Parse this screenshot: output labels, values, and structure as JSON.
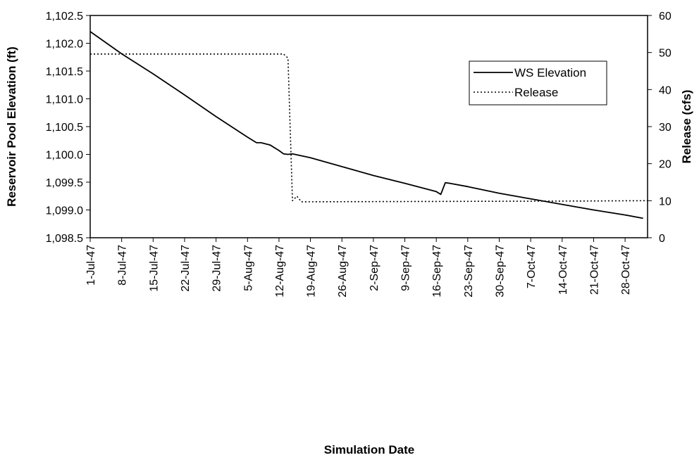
{
  "chart_data": {
    "type": "line",
    "xlabel": "Simulation Date",
    "ylabel_left": "Reservoir Pool Elevation (ft)",
    "ylabel_right": "Release (cfs)",
    "ylim_left": [
      1098.5,
      1102.5
    ],
    "ylim_right": [
      0,
      60
    ],
    "xlim": [
      "1-Jul-47",
      "2-Nov-47"
    ],
    "left_ticks": [
      "1,098.5",
      "1,099.0",
      "1,099.5",
      "1,100.0",
      "1,100.5",
      "1,101.0",
      "1,101.5",
      "1,102.0",
      "1,102.5"
    ],
    "right_ticks": [
      "0",
      "10",
      "20",
      "30",
      "40",
      "50",
      "60"
    ],
    "x_ticks": [
      "1-Jul-47",
      "8-Jul-47",
      "15-Jul-47",
      "22-Jul-47",
      "29-Jul-47",
      "5-Aug-47",
      "12-Aug-47",
      "19-Aug-47",
      "26-Aug-47",
      "2-Sep-47",
      "9-Sep-47",
      "16-Sep-47",
      "23-Sep-47",
      "30-Sep-47",
      "7-Oct-47",
      "14-Oct-47",
      "21-Oct-47",
      "28-Oct-47"
    ],
    "grid": false,
    "legend_position": "top-right",
    "series": [
      {
        "name": "WS Elevation",
        "axis": "left",
        "style": "solid",
        "color": "#000000",
        "points": [
          [
            "1-Jul-47",
            1102.21
          ],
          [
            "8-Jul-47",
            1101.81
          ],
          [
            "15-Jul-47",
            1101.45
          ],
          [
            "22-Jul-47",
            1101.07
          ],
          [
            "29-Jul-47",
            1100.68
          ],
          [
            "5-Aug-47",
            1100.31
          ],
          [
            "7-Aug-47",
            1100.21
          ],
          [
            "8-Aug-47",
            1100.21
          ],
          [
            "9-Aug-47",
            1100.19
          ],
          [
            "10-Aug-47",
            1100.17
          ],
          [
            "12-Aug-47",
            1100.07
          ],
          [
            "13-Aug-47",
            1100.01
          ],
          [
            "14-Aug-47",
            1100.0
          ],
          [
            "15-Aug-47",
            1100.01
          ],
          [
            "19-Aug-47",
            1099.94
          ],
          [
            "26-Aug-47",
            1099.78
          ],
          [
            "2-Sep-47",
            1099.62
          ],
          [
            "9-Sep-47",
            1099.48
          ],
          [
            "16-Sep-47",
            1099.33
          ],
          [
            "17-Sep-47",
            1099.28
          ],
          [
            "18-Sep-47",
            1099.49
          ],
          [
            "19-Sep-47",
            1099.48
          ],
          [
            "23-Sep-47",
            1099.42
          ],
          [
            "30-Sep-47",
            1099.3
          ],
          [
            "7-Oct-47",
            1099.2
          ],
          [
            "14-Oct-47",
            1099.1
          ],
          [
            "21-Oct-47",
            1099.0
          ],
          [
            "28-Oct-47",
            1098.91
          ],
          [
            "1-Nov-47",
            1098.85
          ]
        ]
      },
      {
        "name": "Release",
        "axis": "right",
        "style": "dotted",
        "color": "#000000",
        "points": [
          [
            "1-Jul-47",
            49.6
          ],
          [
            "13-Aug-47",
            49.6
          ],
          [
            "14-Aug-47",
            48.5
          ],
          [
            "15-Aug-47",
            10.0
          ],
          [
            "16-Aug-47",
            11.2
          ],
          [
            "17-Aug-47",
            9.7
          ],
          [
            "16-Sep-47",
            9.8
          ],
          [
            "16-Oct-47",
            9.9
          ],
          [
            "2-Nov-47",
            10.0
          ]
        ]
      }
    ]
  }
}
